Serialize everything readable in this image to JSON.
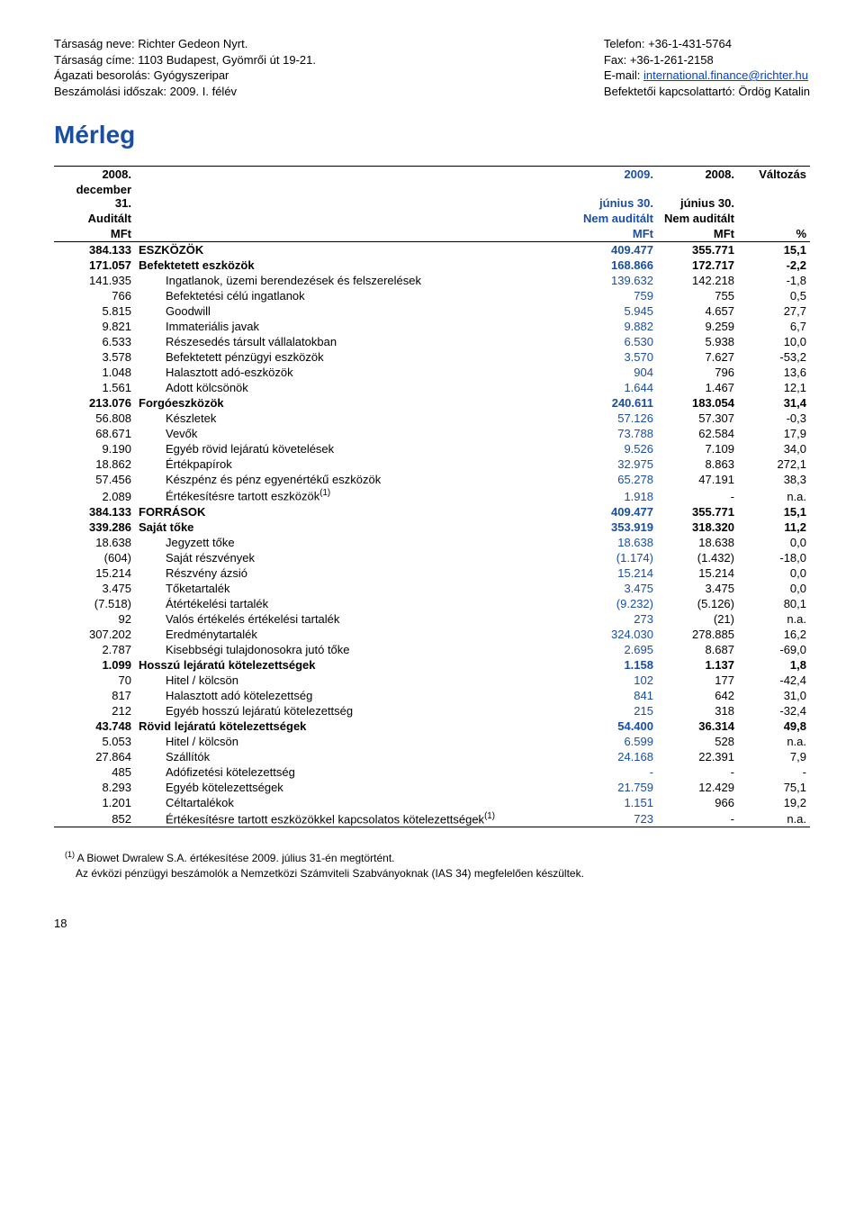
{
  "header": {
    "left": {
      "l1": "Társaság neve: Richter Gedeon Nyrt.",
      "l2": "Társaság címe: 1103 Budapest, Gyömrői út 19-21.",
      "l3": "Ágazati besorolás: Gyógyszeripar",
      "l4": "Beszámolási időszak: 2009. I. félév"
    },
    "right": {
      "l1": "Telefon: +36-1-431-5764",
      "l2": "Fax: +36-1-261-2158",
      "l3a": "E-mail: ",
      "l3link": "international.finance@richter.hu",
      "l4": "Befektetői kapcsolattartó: Ördög Katalin"
    }
  },
  "title": "Mérleg",
  "columns": {
    "prev": {
      "y": "2008.",
      "d": "december 31.",
      "a": "Auditált",
      "u": "MFt"
    },
    "curr": {
      "y": "2009.",
      "d": "június 30.",
      "a": "Nem auditált",
      "u": "MFt"
    },
    "cmp": {
      "y": "2008.",
      "d": "június 30.",
      "a": "Nem auditált",
      "u": "MFt"
    },
    "chg": {
      "y": "Változás",
      "u": "%"
    }
  },
  "rows": [
    {
      "prev": "384.133",
      "label": "ESZKÖZÖK",
      "curr": "409.477",
      "cmp": "355.771",
      "chg": "15,1",
      "bold": true
    },
    {
      "prev": "171.057",
      "label": "Befektetett eszközök",
      "curr": "168.866",
      "cmp": "172.717",
      "chg": "-2,2",
      "bold": true
    },
    {
      "prev": "141.935",
      "label": "Ingatlanok, üzemi berendezések és felszerelések",
      "curr": "139.632",
      "cmp": "142.218",
      "chg": "-1,8",
      "indent": true
    },
    {
      "prev": "766",
      "label": "Befektetési célú ingatlanok",
      "curr": "759",
      "cmp": "755",
      "chg": "0,5",
      "indent": true
    },
    {
      "prev": "5.815",
      "label": "Goodwill",
      "curr": "5.945",
      "cmp": "4.657",
      "chg": "27,7",
      "indent": true
    },
    {
      "prev": "9.821",
      "label": "Immateriális javak",
      "curr": "9.882",
      "cmp": "9.259",
      "chg": "6,7",
      "indent": true
    },
    {
      "prev": "6.533",
      "label": "Részesedés társult vállalatokban",
      "curr": "6.530",
      "cmp": "5.938",
      "chg": "10,0",
      "indent": true
    },
    {
      "prev": "3.578",
      "label": "Befektetett pénzügyi eszközök",
      "curr": "3.570",
      "cmp": "7.627",
      "chg": "-53,2",
      "indent": true
    },
    {
      "prev": "1.048",
      "label": "Halasztott adó-eszközök",
      "curr": "904",
      "cmp": "796",
      "chg": "13,6",
      "indent": true
    },
    {
      "prev": "1.561",
      "label": "Adott kölcsönök",
      "curr": "1.644",
      "cmp": "1.467",
      "chg": "12,1",
      "indent": true
    },
    {
      "prev": "213.076",
      "label": "Forgóeszközök",
      "curr": "240.611",
      "cmp": "183.054",
      "chg": "31,4",
      "bold": true
    },
    {
      "prev": "56.808",
      "label": "Készletek",
      "curr": "57.126",
      "cmp": "57.307",
      "chg": "-0,3",
      "indent": true
    },
    {
      "prev": "68.671",
      "label": "Vevők",
      "curr": "73.788",
      "cmp": "62.584",
      "chg": "17,9",
      "indent": true
    },
    {
      "prev": "9.190",
      "label": "Egyéb rövid lejáratú követelések",
      "curr": "9.526",
      "cmp": "7.109",
      "chg": "34,0",
      "indent": true
    },
    {
      "prev": "18.862",
      "label": "Értékpapírok",
      "curr": "32.975",
      "cmp": "8.863",
      "chg": "272,1",
      "indent": true
    },
    {
      "prev": "57.456",
      "label": "Készpénz és pénz egyenértékű eszközök",
      "curr": "65.278",
      "cmp": "47.191",
      "chg": "38,3",
      "indent": true
    },
    {
      "prev": "2.089",
      "label": "Értékesítésre tartott eszközök",
      "curr": "1.918",
      "cmp": "-",
      "chg": "n.a.",
      "indent": true,
      "sup": "(1)"
    },
    {
      "prev": "384.133",
      "label": "FORRÁSOK",
      "curr": "409.477",
      "cmp": "355.771",
      "chg": "15,1",
      "bold": true
    },
    {
      "prev": "339.286",
      "label": "Saját tőke",
      "curr": "353.919",
      "cmp": "318.320",
      "chg": "11,2",
      "bold": true
    },
    {
      "prev": "18.638",
      "label": "Jegyzett tőke",
      "curr": "18.638",
      "cmp": "18.638",
      "chg": "0,0",
      "indent": true
    },
    {
      "prev": "(604)",
      "label": "Saját részvények",
      "curr": "(1.174)",
      "cmp": "(1.432)",
      "chg": "-18,0",
      "indent": true
    },
    {
      "prev": "15.214",
      "label": "Részvény ázsió",
      "curr": "15.214",
      "cmp": "15.214",
      "chg": "0,0",
      "indent": true
    },
    {
      "prev": "3.475",
      "label": "Tőketartalék",
      "curr": "3.475",
      "cmp": "3.475",
      "chg": "0,0",
      "indent": true
    },
    {
      "prev": "(7.518)",
      "label": "Átértékelési tartalék",
      "curr": "(9.232)",
      "cmp": "(5.126)",
      "chg": "80,1",
      "indent": true
    },
    {
      "prev": "92",
      "label": "Valós értékelés értékelési tartalék",
      "curr": "273",
      "cmp": "(21)",
      "chg": "n.a.",
      "indent": true
    },
    {
      "prev": "307.202",
      "label": "Eredménytartalék",
      "curr": "324.030",
      "cmp": "278.885",
      "chg": "16,2",
      "indent": true
    },
    {
      "prev": "2.787",
      "label": "Kisebbségi tulajdonosokra jutó tőke",
      "curr": "2.695",
      "cmp": "8.687",
      "chg": "-69,0",
      "indent": true
    },
    {
      "prev": "1.099",
      "label": "Hosszú lejáratú kötelezettségek",
      "curr": "1.158",
      "cmp": "1.137",
      "chg": "1,8",
      "bold": true
    },
    {
      "prev": "70",
      "label": "Hitel / kölcsön",
      "curr": "102",
      "cmp": "177",
      "chg": "-42,4",
      "indent": true
    },
    {
      "prev": "817",
      "label": "Halasztott adó kötelezettség",
      "curr": "841",
      "cmp": "642",
      "chg": "31,0",
      "indent": true
    },
    {
      "prev": "212",
      "label": "Egyéb hosszú lejáratú kötelezettség",
      "curr": "215",
      "cmp": "318",
      "chg": "-32,4",
      "indent": true
    },
    {
      "prev": "43.748",
      "label": "Rövid lejáratú kötelezettségek",
      "curr": "54.400",
      "cmp": "36.314",
      "chg": "49,8",
      "bold": true
    },
    {
      "prev": "5.053",
      "label": "Hitel / kölcsön",
      "curr": "6.599",
      "cmp": "528",
      "chg": "n.a.",
      "indent": true
    },
    {
      "prev": "27.864",
      "label": "Szállítók",
      "curr": "24.168",
      "cmp": "22.391",
      "chg": "7,9",
      "indent": true
    },
    {
      "prev": "485",
      "label": "Adófizetési kötelezettség",
      "curr": "-",
      "cmp": "-",
      "chg": "-",
      "indent": true
    },
    {
      "prev": "8.293",
      "label": "Egyéb kötelezettségek",
      "curr": "21.759",
      "cmp": "12.429",
      "chg": "75,1",
      "indent": true
    },
    {
      "prev": "1.201",
      "label": "Céltartalékok",
      "curr": "1.151",
      "cmp": "966",
      "chg": "19,2",
      "indent": true
    },
    {
      "prev": "852",
      "label": "Értékesítésre tartott eszközökkel kapcsolatos kötelezettségek",
      "curr": "723",
      "cmp": "-",
      "chg": "n.a.",
      "indent": true,
      "sup": "(1)",
      "last": true
    }
  ],
  "footnote": {
    "f1a": "(1)",
    "f1b": " A Biowet Dwralew S.A. értékesítése 2009. július 31-én megtörtént.",
    "f2": "Az évközi pénzügyi beszámolók a Nemzetközi Számviteli Szabványoknak (IAS 34) megfelelően készültek."
  },
  "pagenum": "18"
}
